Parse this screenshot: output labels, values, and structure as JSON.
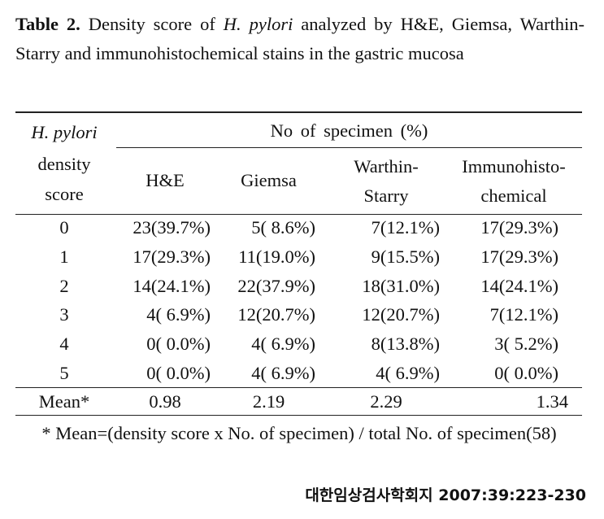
{
  "caption": {
    "label": "Table 2.",
    "text_before": " Density score of ",
    "italic": "H. pylori",
    "text_after": " analyzed by H&E, Giemsa, Warthin-Starry and immunohistochemical stains in the gastric mucosa"
  },
  "header": {
    "row_label_italic": "H. pylori",
    "row_label_line2": "density",
    "row_label_line3": "score",
    "group_label": "No of specimen (%)",
    "columns": [
      {
        "line1": "H&E",
        "line2": ""
      },
      {
        "line1": "Giemsa",
        "line2": ""
      },
      {
        "line1": "Warthin-",
        "line2": "Starry"
      },
      {
        "line1": "Immunohisto-",
        "line2": "chemical"
      }
    ]
  },
  "rows": [
    {
      "score": "0",
      "values": [
        "23(39.7%)",
        " 5( 8.6%)",
        " 7(12.1%)",
        "17(29.3%)"
      ]
    },
    {
      "score": "1",
      "values": [
        "17(29.3%)",
        "11(19.0%)",
        " 9(15.5%)",
        "17(29.3%)"
      ]
    },
    {
      "score": "2",
      "values": [
        "14(24.1%)",
        "22(37.9%)",
        "18(31.0%)",
        "14(24.1%)"
      ]
    },
    {
      "score": "3",
      "values": [
        " 4( 6.9%)",
        "12(20.7%)",
        "12(20.7%)",
        " 7(12.1%)"
      ]
    },
    {
      "score": "4",
      "values": [
        " 0( 0.0%)",
        " 4( 6.9%)",
        " 8(13.8%)",
        " 3( 5.2%)"
      ]
    },
    {
      "score": "5",
      "values": [
        " 0( 0.0%)",
        " 4( 6.9%)",
        " 4( 6.9%)",
        " 0( 0.0%)"
      ]
    }
  ],
  "mean_row": {
    "label": "Mean*",
    "values": [
      "0.98",
      "2.19",
      "2.29",
      "1.34"
    ]
  },
  "footnote": "* Mean=(density score x No. of specimen) / total No. of specimen(58)",
  "journal": "대한임상검사학회지 2007:39:223-230"
}
